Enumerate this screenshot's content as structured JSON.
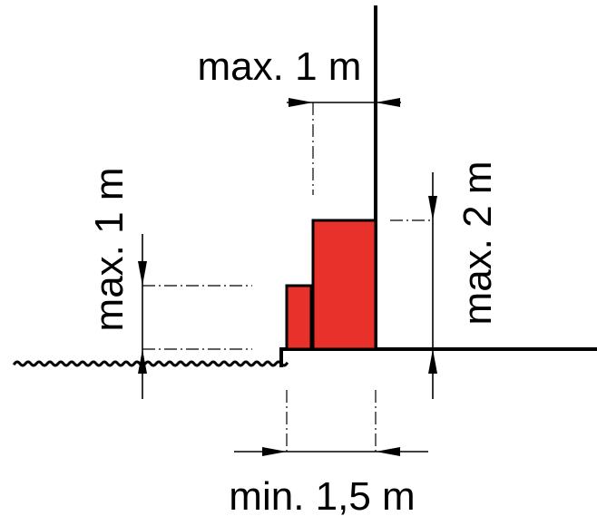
{
  "labels": {
    "top_width": "max. 1 m",
    "left_height": "max. 1 m",
    "right_height": "max. 2 m",
    "bottom_distance": "min. 1,5 m"
  },
  "colors": {
    "block_fill": "#e8312a",
    "line": "#000000"
  }
}
